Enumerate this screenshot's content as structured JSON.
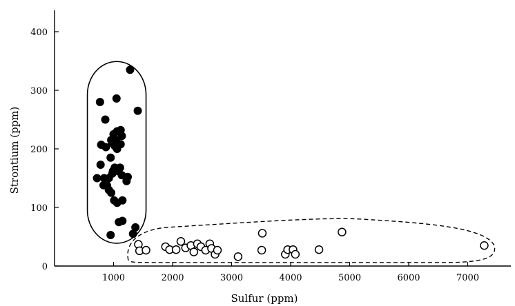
{
  "chart_data": {
    "type": "scatter",
    "title": "",
    "xlabel": "Sulfur (ppm)",
    "ylabel": "Strontium (ppm)",
    "xlim": [
      0,
      7700
    ],
    "ylim": [
      0,
      400
    ],
    "x_ticks": [
      1000,
      2000,
      3000,
      4000,
      5000,
      6000,
      7000
    ],
    "y_ticks": [
      0,
      100,
      200,
      300,
      400
    ],
    "grid": false,
    "legend": "none",
    "series": [
      {
        "marker": "filled-circle",
        "color": "#000000",
        "enclosure": "solid",
        "points": [
          [
            1280,
            335
          ],
          [
            1050,
            286
          ],
          [
            1410,
            265
          ],
          [
            770,
            280
          ],
          [
            860,
            250
          ],
          [
            1120,
            232
          ],
          [
            1060,
            230
          ],
          [
            1000,
            225
          ],
          [
            1140,
            222
          ],
          [
            790,
            207
          ],
          [
            870,
            203
          ],
          [
            1020,
            205
          ],
          [
            1120,
            208
          ],
          [
            960,
            215
          ],
          [
            980,
            210
          ],
          [
            1040,
            215
          ],
          [
            950,
            185
          ],
          [
            1060,
            200
          ],
          [
            990,
            162
          ],
          [
            1020,
            168
          ],
          [
            1110,
            168
          ],
          [
            1080,
            162
          ],
          [
            980,
            158
          ],
          [
            780,
            173
          ],
          [
            920,
            150
          ],
          [
            1140,
            155
          ],
          [
            1220,
            145
          ],
          [
            1240,
            152
          ],
          [
            720,
            150
          ],
          [
            840,
            150
          ],
          [
            870,
            142
          ],
          [
            890,
            137
          ],
          [
            830,
            138
          ],
          [
            920,
            130
          ],
          [
            960,
            125
          ],
          [
            1010,
            112
          ],
          [
            1060,
            108
          ],
          [
            1150,
            112
          ],
          [
            1090,
            75
          ],
          [
            1150,
            77
          ],
          [
            1370,
            66
          ],
          [
            1330,
            55
          ],
          [
            950,
            53
          ]
        ]
      },
      {
        "marker": "open-circle",
        "color": "#000000",
        "enclosure": "dashed",
        "points": [
          [
            1420,
            37
          ],
          [
            1440,
            26
          ],
          [
            1550,
            27
          ],
          [
            1880,
            33
          ],
          [
            1950,
            28
          ],
          [
            2060,
            28
          ],
          [
            2140,
            42
          ],
          [
            2220,
            31
          ],
          [
            2310,
            35
          ],
          [
            2360,
            24
          ],
          [
            2420,
            38
          ],
          [
            2480,
            33
          ],
          [
            2560,
            27
          ],
          [
            2630,
            38
          ],
          [
            2660,
            30
          ],
          [
            2720,
            20
          ],
          [
            2760,
            27
          ],
          [
            3110,
            16
          ],
          [
            3510,
            27
          ],
          [
            3520,
            56
          ],
          [
            3910,
            20
          ],
          [
            3950,
            28
          ],
          [
            4040,
            28
          ],
          [
            4080,
            20
          ],
          [
            4480,
            28
          ],
          [
            4870,
            58
          ],
          [
            7280,
            35
          ]
        ]
      }
    ]
  }
}
